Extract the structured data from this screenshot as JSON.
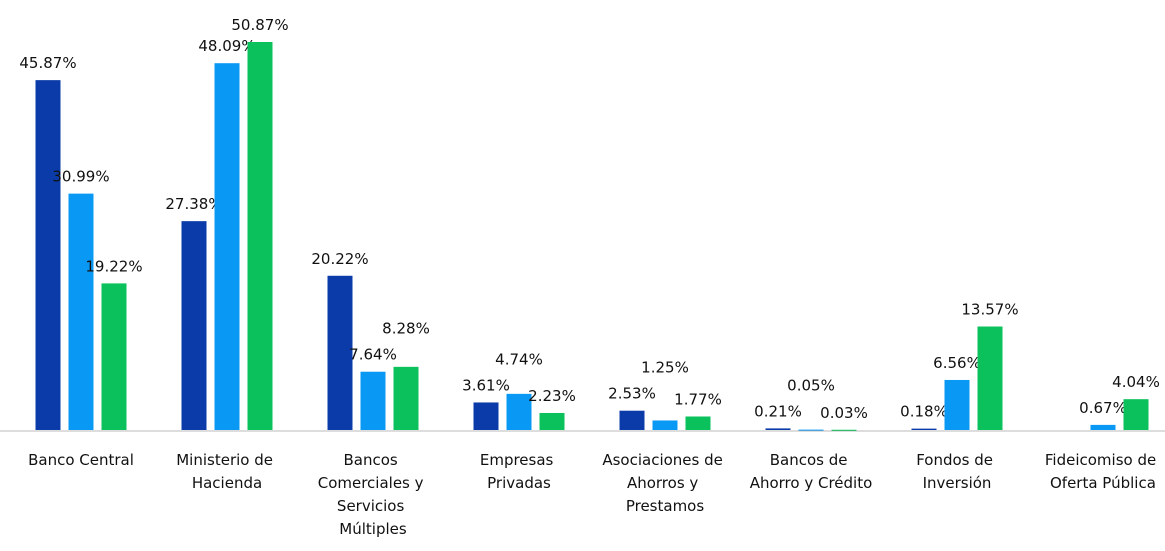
{
  "chart_data": {
    "type": "bar",
    "categories": [
      "Banco Central",
      "Ministerio de Hacienda",
      "Bancos Comerciales y Servicios Múltiples",
      "Empresas Privadas",
      "Asociaciones de Ahorros y Prestamos",
      "Bancos de Ahorro y Crédito",
      "Fondos de Inversión",
      "Fideicomiso de Oferta Pública"
    ],
    "series": [
      {
        "color": "#0a3ba8",
        "values": [
          45.87,
          27.38,
          20.22,
          3.61,
          2.53,
          0.21,
          0.18,
          null
        ],
        "value_labels": [
          "45.87%",
          "27.38%",
          "20.22%",
          "3.61%",
          "2.53%",
          "0.21%",
          "0.18%",
          null
        ]
      },
      {
        "color": "#0a98f5",
        "values": [
          30.99,
          48.09,
          7.64,
          4.74,
          1.25,
          0.05,
          6.56,
          0.67
        ],
        "value_labels": [
          "30.99%",
          "48.09%",
          "7.64%",
          "4.74%",
          "1.25%",
          "0.05%",
          "6.56%",
          "0.67%"
        ]
      },
      {
        "color": "#0ac15b",
        "values": [
          19.22,
          50.87,
          8.28,
          2.23,
          1.77,
          0.03,
          13.57,
          4.04
        ],
        "value_labels": [
          "19.22%",
          "50.87%",
          "8.28%",
          "2.23%",
          "1.77%",
          "0.03%",
          "13.57%",
          "4.04%"
        ]
      }
    ],
    "ylim": [
      0,
      51
    ]
  }
}
